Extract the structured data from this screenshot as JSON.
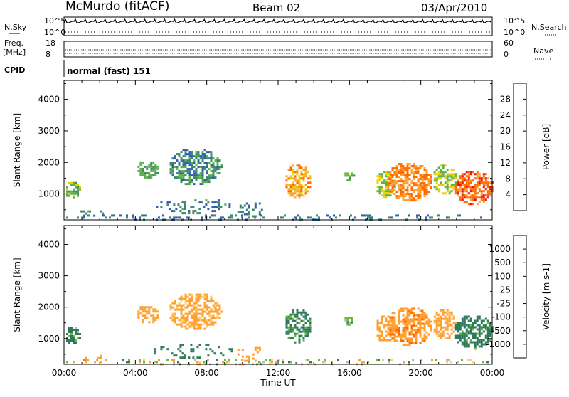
{
  "header": {
    "station": "McMurdo (fitACF)",
    "beam": "Beam 02",
    "date": "03/Apr/2010"
  },
  "top_panel": {
    "left_label": "N.Sky",
    "left_ticks": [
      "10^5",
      "10^0"
    ],
    "right_label": "N.Search",
    "right_ticks": [
      "10^5",
      "10^0"
    ],
    "freq_label_1": "Freq.",
    "freq_label_2": "[MHz]",
    "freq_ticks": [
      "18",
      "8"
    ],
    "nave_label": "Nave",
    "nave_ticks": [
      "60",
      "0"
    ],
    "cpid_label": "CPID",
    "cpid_value": "normal (fast) 151"
  },
  "chart_data": [
    {
      "type": "heatmap",
      "title": "",
      "xlabel": "",
      "ylabel": "Slant Range [km]",
      "x_ticks": [
        "00:00",
        "04:00",
        "08:00",
        "12:00",
        "16:00",
        "20:00",
        "00:00"
      ],
      "xlim_hours": [
        0,
        24
      ],
      "y_ticks": [
        1000,
        2000,
        3000,
        4000
      ],
      "ylim": [
        180,
        4600
      ],
      "colorbar_label": "Power [dB]",
      "colorbar_ticks": [
        4,
        8,
        12,
        16,
        20,
        24,
        28
      ],
      "colorbar_colors": [
        "#1f1fff",
        "#2f5fb0",
        "#3c8a6a",
        "#5fb048",
        "#e8d000",
        "#ffa030",
        "#ff6a00",
        "#ee1010"
      ],
      "patches": [
        {
          "t0": 0.0,
          "t1": 0.9,
          "r0": 850,
          "r1": 1450,
          "value": 14
        },
        {
          "t0": 0.8,
          "t1": 2.2,
          "r0": 300,
          "r1": 550,
          "value": 10
        },
        {
          "t0": 4.0,
          "t1": 5.3,
          "r0": 1500,
          "r1": 2100,
          "value": 12
        },
        {
          "t0": 5.8,
          "t1": 8.8,
          "r0": 1300,
          "r1": 2500,
          "value": 10
        },
        {
          "t0": 4.8,
          "t1": 9.4,
          "r0": 400,
          "r1": 900,
          "value": 9
        },
        {
          "t0": 9.6,
          "t1": 11.2,
          "r0": 300,
          "r1": 800,
          "value": 8
        },
        {
          "t0": 12.3,
          "t1": 13.8,
          "r0": 900,
          "r1": 2000,
          "value": 22
        },
        {
          "t0": 15.6,
          "t1": 16.2,
          "r0": 1450,
          "r1": 1750,
          "value": 14
        },
        {
          "t0": 17.4,
          "t1": 18.5,
          "r0": 900,
          "r1": 1800,
          "value": 16
        },
        {
          "t0": 18.0,
          "t1": 20.6,
          "r0": 800,
          "r1": 2050,
          "value": 24
        },
        {
          "t0": 20.6,
          "t1": 22.0,
          "r0": 1000,
          "r1": 2000,
          "value": 16
        },
        {
          "t0": 21.8,
          "t1": 24.0,
          "r0": 700,
          "r1": 1800,
          "value": 26
        },
        {
          "t0": 0.0,
          "t1": 24.0,
          "r0": 180,
          "r1": 420,
          "value": 8
        }
      ]
    },
    {
      "type": "heatmap",
      "title": "",
      "xlabel": "Time UT",
      "ylabel": "Slant Range [km]",
      "x_ticks": [
        "00:00",
        "04:00",
        "08:00",
        "12:00",
        "16:00",
        "20:00",
        "00:00"
      ],
      "xlim_hours": [
        0,
        24
      ],
      "y_ticks": [
        1000,
        2000,
        3000,
        4000
      ],
      "ylim": [
        180,
        4600
      ],
      "colorbar_label": "Velocity [m s-1]",
      "colorbar_ticks": [
        "1000",
        "500",
        "100",
        "25",
        "-25",
        "-100",
        "-500",
        "-1000"
      ],
      "colorbar_colors": [
        "#2020c8",
        "#2f5fb0",
        "#2e7a5a",
        "#6cbc3c",
        "#b8b8b8",
        "#ffd070",
        "#ffa030",
        "#ff6a00",
        "#ee1010"
      ],
      "patches": [
        {
          "t0": 0.0,
          "t1": 0.9,
          "r0": 850,
          "r1": 1450,
          "value": 150
        },
        {
          "t0": 0.8,
          "t1": 2.2,
          "r0": 300,
          "r1": 550,
          "value": -400
        },
        {
          "t0": 4.0,
          "t1": 5.3,
          "r0": 1500,
          "r1": 2100,
          "value": -300
        },
        {
          "t0": 5.8,
          "t1": 8.8,
          "r0": 1300,
          "r1": 2500,
          "value": -200
        },
        {
          "t0": 4.8,
          "t1": 9.4,
          "r0": 400,
          "r1": 900,
          "value": 300
        },
        {
          "t0": 9.6,
          "t1": 11.2,
          "r0": 300,
          "r1": 800,
          "value": -300
        },
        {
          "t0": 12.3,
          "t1": 13.8,
          "r0": 900,
          "r1": 2000,
          "value": 200
        },
        {
          "t0": 15.6,
          "t1": 16.2,
          "r0": 1450,
          "r1": 1750,
          "value": 80
        },
        {
          "t0": 17.4,
          "t1": 18.5,
          "r0": 900,
          "r1": 1800,
          "value": -300
        },
        {
          "t0": 18.0,
          "t1": 20.6,
          "r0": 800,
          "r1": 2050,
          "value": -400
        },
        {
          "t0": 20.6,
          "t1": 22.0,
          "r0": 1000,
          "r1": 2000,
          "value": -200
        },
        {
          "t0": 21.8,
          "t1": 24.0,
          "r0": 700,
          "r1": 1800,
          "value": 200
        },
        {
          "t0": 0.0,
          "t1": 24.0,
          "r0": 180,
          "r1": 420,
          "value": 0
        }
      ]
    }
  ]
}
